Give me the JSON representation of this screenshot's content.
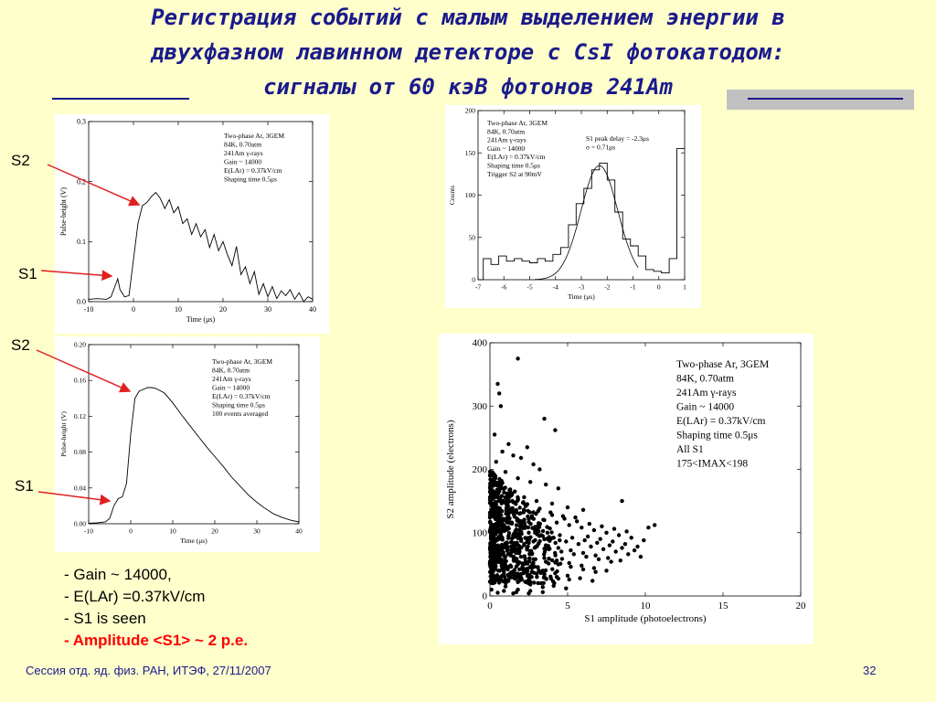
{
  "slide": {
    "title_line1": "Регистрация событий с малым выделением энергии в",
    "title_line2": "двухфазном лавинном детекторе с CsI фотокатодом:",
    "title_line3": "сигналы от 60 кэВ фотонов 241Am",
    "footer_left": "Сессия отд. яд. физ. РАН, ИТЭФ, 27/11/2007",
    "page_number": "32",
    "colors": {
      "title": "#1a1a8c",
      "background": "#ffffcc",
      "arrow": "#e02020",
      "highlight": "#ff0000"
    }
  },
  "labels": {
    "s2_top": "S2",
    "s1_top": "S1",
    "s2_bottom": "S2",
    "s1_bottom": "S1"
  },
  "notes": [
    "- Gain ~ 14000,",
    "- E(LAr) =0.37kV/cm",
    "- S1 is seen",
    "- Amplitude <S1> ~ 2 p.e."
  ],
  "chart_data": [
    {
      "id": "single-event",
      "type": "line",
      "xlabel": "Time (μs)",
      "ylabel": "Pulse-height (V)",
      "xlim": [
        -10,
        40
      ],
      "ylim": [
        0,
        0.3
      ],
      "xticks": [
        "-10",
        "0",
        "10",
        "20",
        "30",
        "40"
      ],
      "yticks": [
        "0.0",
        "0.1",
        "0.2",
        "0.3"
      ],
      "annotation": [
        "Two-phase Ar, 3GEM",
        "84K, 0.70atm",
        "241Am γ-rays",
        "Gain ~ 14000",
        "E(LAr) = 0.37kV/cm",
        "Shaping time 0.5μs"
      ],
      "x": [
        -10,
        -8,
        -6,
        -5,
        -4,
        -3.5,
        -3,
        -2.5,
        -2,
        -1,
        0,
        1,
        2,
        3,
        4,
        5,
        6,
        7,
        8,
        9,
        10,
        11,
        12,
        13,
        14,
        15,
        16,
        17,
        18,
        19,
        20,
        21,
        22,
        23,
        24,
        25,
        26,
        27,
        28,
        29,
        30,
        31,
        32,
        33,
        34,
        35,
        36,
        37,
        38,
        39,
        40
      ],
      "y": [
        0.004,
        0.005,
        0.004,
        0.008,
        0.028,
        0.038,
        0.02,
        0.014,
        0.008,
        0.01,
        0.07,
        0.13,
        0.16,
        0.165,
        0.175,
        0.182,
        0.172,
        0.155,
        0.17,
        0.148,
        0.158,
        0.13,
        0.138,
        0.112,
        0.13,
        0.108,
        0.12,
        0.09,
        0.112,
        0.085,
        0.1,
        0.078,
        0.06,
        0.092,
        0.045,
        0.058,
        0.03,
        0.05,
        0.012,
        0.03,
        0.008,
        0.025,
        0.005,
        0.018,
        0.01,
        0.02,
        0.004,
        0.015,
        0.0,
        0.008,
        0.004
      ]
    },
    {
      "id": "averaged",
      "type": "line",
      "xlabel": "Time (μs)",
      "ylabel": "Pulse-height (V)",
      "xlim": [
        -10,
        40
      ],
      "ylim": [
        0,
        0.2
      ],
      "xticks": [
        "-10",
        "0",
        "10",
        "20",
        "30",
        "40"
      ],
      "yticks": [
        "0.00",
        "0.04",
        "0.08",
        "0.12",
        "0.16",
        "0.20"
      ],
      "annotation": [
        "Two-phase Ar, 3GEM",
        "84K, 0.70atm",
        "241Am γ-rays",
        "Gain ~ 14000",
        "E(LAr) = 0.37kV/cm",
        "Shaping time 0.5μs",
        "100 events averaged"
      ],
      "x": [
        -10,
        -8,
        -6,
        -5,
        -4,
        -3,
        -2,
        -1,
        0,
        1,
        2,
        3,
        4,
        5,
        6,
        8,
        10,
        12,
        14,
        16,
        18,
        20,
        22,
        24,
        26,
        28,
        30,
        32,
        34,
        36,
        38,
        40
      ],
      "y": [
        0.0005,
        0.001,
        0.002,
        0.006,
        0.02,
        0.028,
        0.03,
        0.045,
        0.1,
        0.14,
        0.148,
        0.15,
        0.152,
        0.152,
        0.151,
        0.146,
        0.135,
        0.122,
        0.11,
        0.098,
        0.086,
        0.075,
        0.064,
        0.052,
        0.042,
        0.032,
        0.024,
        0.017,
        0.011,
        0.007,
        0.004,
        0.002
      ]
    },
    {
      "id": "s1-delay-histogram",
      "type": "bar",
      "xlabel": "Time (μs)",
      "ylabel": "Counts",
      "xlim": [
        -7,
        1
      ],
      "ylim": [
        0,
        200
      ],
      "xticks": [
        "-7",
        "-6",
        "-5",
        "-4",
        "-3",
        "-2",
        "-1",
        "0",
        "1"
      ],
      "yticks": [
        "0",
        "50",
        "100",
        "150",
        "200"
      ],
      "annotation": [
        "Two-phase Ar, 3GEM",
        "84K, 0.70atm",
        "241Am γ-rays",
        "Gain ~ 14000",
        "E(LAr) = 0.37kV/cm",
        "Shaping time 0.5μs",
        "Trigger S2 at 90mV"
      ],
      "fit_text": [
        "S1 peak delay = -2.3μs",
        "σ = 0.71μs"
      ],
      "bin_edges": [
        -7,
        -6.8,
        -6.5,
        -6.2,
        -5.9,
        -5.6,
        -5.3,
        -5.0,
        -4.7,
        -4.4,
        -4.1,
        -3.8,
        -3.5,
        -3.2,
        -2.9,
        -2.6,
        -2.3,
        -2.0,
        -1.7,
        -1.4,
        -1.1,
        -0.8,
        -0.5,
        -0.2,
        0.1,
        0.4,
        0.7,
        1.0
      ],
      "counts": [
        0,
        25,
        18,
        28,
        22,
        25,
        22,
        20,
        25,
        22,
        30,
        38,
        65,
        90,
        108,
        130,
        138,
        118,
        80,
        48,
        40,
        28,
        12,
        10,
        8,
        25,
        155
      ],
      "fit_curve": {
        "mean": -2.3,
        "sigma": 0.71,
        "amplitude": 135
      }
    },
    {
      "id": "s2-vs-s1",
      "type": "scatter",
      "xlabel": "S1 amplitude (photoelectrons)",
      "ylabel": "S2 amplitude (electrons)",
      "xlim": [
        0,
        20
      ],
      "ylim": [
        0,
        400
      ],
      "xticks": [
        "0",
        "5",
        "10",
        "15",
        "20"
      ],
      "yticks": [
        "0",
        "100",
        "200",
        "300",
        "400"
      ],
      "annotation": [
        "Two-phase Ar, 3GEM",
        "84K, 0.70atm",
        "241Am γ-rays",
        "Gain ~ 14000",
        "E(LAr) = 0.37kV/cm",
        "Shaping time 0.5μs",
        "All S1",
        "175<IMAX<198"
      ],
      "points": [
        [
          1.8,
          375
        ],
        [
          0.5,
          335
        ],
        [
          0.6,
          320
        ],
        [
          0.7,
          300
        ],
        [
          3.5,
          280
        ],
        [
          4.2,
          262
        ],
        [
          0.3,
          255
        ],
        [
          1.2,
          240
        ],
        [
          2.4,
          235
        ],
        [
          0.8,
          228
        ],
        [
          1.5,
          222
        ],
        [
          2.0,
          218
        ],
        [
          0.4,
          212
        ],
        [
          2.8,
          208
        ],
        [
          3.2,
          200
        ],
        [
          1.0,
          196
        ],
        [
          0.2,
          190
        ],
        [
          1.8,
          186
        ],
        [
          2.6,
          180
        ],
        [
          3.6,
          176
        ],
        [
          4.4,
          170
        ],
        [
          0.6,
          165
        ],
        [
          1.4,
          160
        ],
        [
          2.2,
          156
        ],
        [
          3.0,
          150
        ],
        [
          4.0,
          146
        ],
        [
          5.0,
          140
        ],
        [
          6.0,
          136
        ],
        [
          8.5,
          150
        ],
        [
          0.3,
          140
        ],
        [
          1.1,
          135
        ],
        [
          1.9,
          130
        ],
        [
          2.7,
          126
        ],
        [
          3.5,
          120
        ],
        [
          4.3,
          116
        ],
        [
          5.1,
          112
        ],
        [
          5.9,
          108
        ],
        [
          6.7,
          104
        ],
        [
          7.5,
          100
        ],
        [
          8.3,
          96
        ],
        [
          9.1,
          92
        ],
        [
          9.9,
          88
        ],
        [
          10.6,
          112
        ],
        [
          10.2,
          108
        ],
        [
          0.5,
          120
        ],
        [
          1.3,
          115
        ],
        [
          2.1,
          110
        ],
        [
          2.9,
          106
        ],
        [
          3.7,
          100
        ],
        [
          4.5,
          96
        ],
        [
          5.3,
          92
        ],
        [
          6.1,
          88
        ],
        [
          6.9,
          84
        ],
        [
          7.7,
          80
        ],
        [
          8.5,
          76
        ],
        [
          9.3,
          72
        ],
        [
          0.4,
          100
        ],
        [
          1.2,
          95
        ],
        [
          2.0,
          90
        ],
        [
          2.8,
          86
        ],
        [
          3.6,
          80
        ],
        [
          4.4,
          76
        ],
        [
          5.2,
          72
        ],
        [
          6.0,
          68
        ],
        [
          6.8,
          64
        ],
        [
          7.6,
          60
        ],
        [
          8.4,
          56
        ],
        [
          0.3,
          80
        ],
        [
          1.1,
          75
        ],
        [
          1.9,
          70
        ],
        [
          2.7,
          66
        ],
        [
          3.5,
          60
        ],
        [
          4.3,
          56
        ],
        [
          5.1,
          52
        ],
        [
          5.9,
          48
        ],
        [
          6.7,
          44
        ],
        [
          7.5,
          40
        ],
        [
          0.2,
          60
        ],
        [
          1.0,
          55
        ],
        [
          1.8,
          50
        ],
        [
          2.6,
          46
        ],
        [
          3.4,
          40
        ],
        [
          4.2,
          36
        ],
        [
          5.0,
          32
        ],
        [
          5.8,
          28
        ],
        [
          6.6,
          24
        ],
        [
          0.1,
          40
        ],
        [
          0.9,
          35
        ],
        [
          1.7,
          30
        ],
        [
          2.5,
          26
        ],
        [
          3.3,
          20
        ],
        [
          4.1,
          16
        ],
        [
          4.9,
          12
        ],
        [
          0.2,
          20
        ],
        [
          1.0,
          15
        ],
        [
          1.8,
          10
        ],
        [
          2.6,
          8
        ],
        [
          3.4,
          6
        ],
        [
          0.5,
          5
        ],
        [
          1.5,
          4
        ],
        [
          0.8,
          170
        ],
        [
          1.6,
          165
        ],
        [
          2.4,
          145
        ],
        [
          3.2,
          138
        ],
        [
          4.0,
          128
        ],
        [
          4.8,
          122
        ],
        [
          5.6,
          118
        ],
        [
          6.4,
          114
        ],
        [
          7.2,
          110
        ],
        [
          8.0,
          106
        ],
        [
          8.8,
          102
        ],
        [
          0.7,
          150
        ],
        [
          1.5,
          148
        ],
        [
          2.3,
          142
        ],
        [
          3.1,
          134
        ],
        [
          3.9,
          132
        ],
        [
          4.7,
          126
        ],
        [
          5.5,
          124
        ],
        [
          6.3,
          94
        ],
        [
          7.1,
          90
        ],
        [
          7.9,
          86
        ],
        [
          8.7,
          82
        ],
        [
          9.5,
          78
        ],
        [
          0.9,
          110
        ],
        [
          1.7,
          105
        ],
        [
          2.5,
          100
        ],
        [
          3.3,
          96
        ],
        [
          4.1,
          92
        ],
        [
          4.9,
          86
        ],
        [
          5.7,
          82
        ],
        [
          6.5,
          78
        ],
        [
          7.3,
          74
        ],
        [
          8.1,
          70
        ],
        [
          8.9,
          66
        ],
        [
          9.7,
          62
        ],
        [
          0.6,
          90
        ],
        [
          1.4,
          85
        ],
        [
          2.2,
          82
        ],
        [
          3.0,
          78
        ],
        [
          3.8,
          74
        ],
        [
          4.6,
          70
        ],
        [
          5.4,
          66
        ],
        [
          6.2,
          62
        ],
        [
          7.0,
          58
        ],
        [
          7.8,
          54
        ],
        [
          0.4,
          70
        ],
        [
          1.2,
          66
        ],
        [
          2.0,
          62
        ],
        [
          2.8,
          58
        ],
        [
          3.6,
          54
        ],
        [
          4.4,
          50
        ],
        [
          5.2,
          46
        ],
        [
          6.0,
          42
        ],
        [
          6.8,
          38
        ],
        [
          0.3,
          50
        ],
        [
          1.1,
          46
        ],
        [
          1.9,
          42
        ],
        [
          2.7,
          38
        ],
        [
          3.5,
          34
        ],
        [
          4.3,
          30
        ],
        [
          5.1,
          26
        ],
        [
          0.2,
          30
        ],
        [
          1.0,
          26
        ],
        [
          1.8,
          22
        ],
        [
          2.6,
          18
        ],
        [
          3.4,
          14
        ],
        [
          0.1,
          10
        ],
        [
          0.9,
          8
        ],
        [
          1.7,
          6
        ],
        [
          2.5,
          4
        ]
      ]
    }
  ]
}
